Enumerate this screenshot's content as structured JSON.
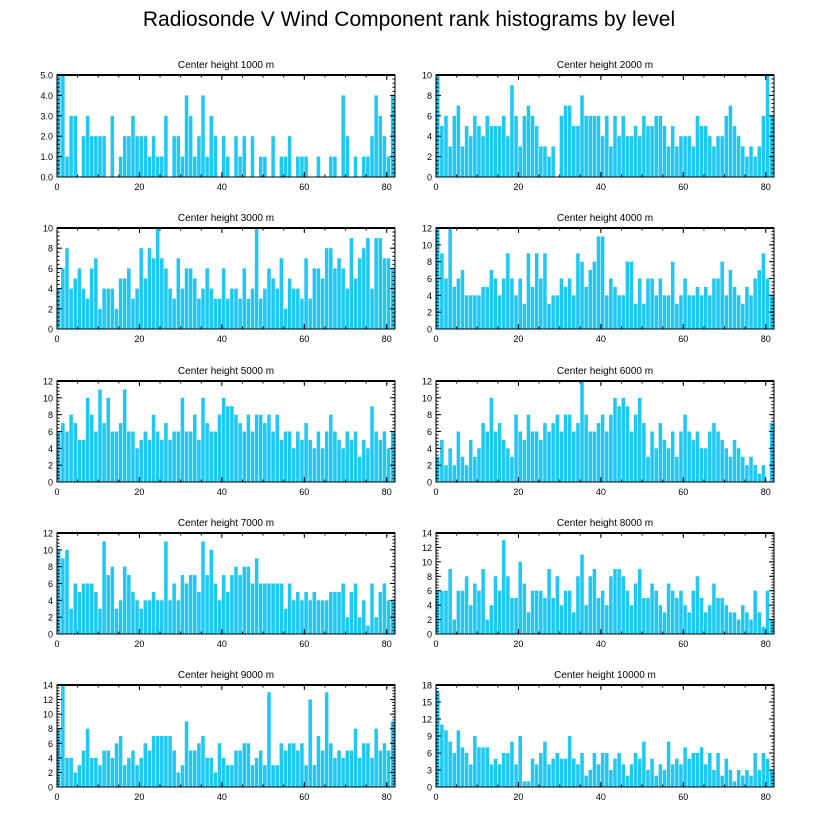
{
  "title": "Radiosonde V Wind Component rank histograms by level",
  "chart_data": [
    {
      "type": "bar",
      "title": "Center height 1000 m",
      "ylim": [
        0,
        5
      ],
      "yticks": [
        0,
        1,
        2,
        3,
        4,
        5
      ],
      "ytick_labels": [
        "0.0",
        "1.0",
        "2.0",
        "3.0",
        "4.0",
        "5.0"
      ],
      "xlim": [
        0,
        82
      ],
      "xticks": [
        0,
        20,
        40,
        60,
        80
      ],
      "values": [
        5,
        5,
        1,
        3,
        3,
        0,
        2,
        3,
        2,
        2,
        2,
        2,
        0,
        3,
        0,
        1,
        2,
        2,
        3,
        2,
        2,
        2,
        1,
        2,
        1,
        1,
        3,
        0,
        2,
        2,
        1,
        4,
        3,
        1,
        2,
        4,
        1,
        3,
        2,
        0,
        2,
        1,
        0,
        2,
        1,
        2,
        0,
        2,
        0,
        1,
        1,
        0,
        2,
        0,
        1,
        1,
        2,
        0,
        1,
        1,
        1,
        0,
        0,
        1,
        0,
        0,
        1,
        1,
        0,
        4,
        2,
        0,
        1,
        0,
        1,
        1,
        2,
        4,
        3,
        2,
        1,
        4
      ]
    },
    {
      "type": "bar",
      "title": "Center height 2000 m",
      "ylim": [
        0,
        10
      ],
      "yticks": [
        0,
        2,
        4,
        6,
        8,
        10
      ],
      "ytick_labels": [
        "0",
        "2",
        "4",
        "6",
        "8",
        "10"
      ],
      "xlim": [
        0,
        82
      ],
      "xticks": [
        0,
        20,
        40,
        60,
        80
      ],
      "values": [
        10,
        5,
        6,
        3,
        6,
        7,
        3,
        5,
        4,
        6,
        5,
        4,
        6,
        5,
        5,
        5,
        6,
        4,
        9,
        6,
        3,
        6,
        7,
        6,
        5,
        3,
        3,
        2,
        3,
        0,
        6,
        7,
        7,
        5,
        5,
        8,
        6,
        6,
        6,
        6,
        4,
        6,
        3,
        6,
        4,
        6,
        4,
        4,
        5,
        4,
        6,
        5,
        5,
        6,
        6,
        5,
        3,
        5,
        3,
        4,
        4,
        4,
        3,
        6,
        5,
        5,
        4,
        3,
        4,
        4,
        6,
        7,
        5,
        4,
        3,
        2,
        3,
        2,
        3,
        6,
        10,
        6
      ]
    },
    {
      "type": "bar",
      "title": "Center height 3000 m",
      "ylim": [
        0,
        10
      ],
      "yticks": [
        0,
        2,
        4,
        6,
        8,
        10
      ],
      "ytick_labels": [
        "0",
        "2",
        "4",
        "6",
        "8",
        "10"
      ],
      "xlim": [
        0,
        82
      ],
      "xticks": [
        0,
        20,
        40,
        60,
        80
      ],
      "values": [
        4,
        6,
        8,
        4,
        5,
        6,
        4,
        3,
        6,
        7,
        2,
        4,
        4,
        4,
        2,
        5,
        5,
        6,
        3,
        4,
        8,
        5,
        8,
        7,
        10,
        7,
        6,
        4,
        3,
        7,
        4,
        6,
        6,
        5,
        3,
        4,
        6,
        4,
        3,
        3,
        6,
        3,
        4,
        4,
        3,
        6,
        3,
        4,
        10,
        3,
        4,
        6,
        5,
        4,
        7,
        2,
        5,
        4,
        4,
        3,
        7,
        3,
        6,
        6,
        5,
        8,
        8,
        6,
        7,
        6,
        4,
        9,
        5,
        7,
        8,
        9,
        4,
        9,
        9,
        7,
        7,
        6
      ]
    },
    {
      "type": "bar",
      "title": "Center height 4000 m",
      "ylim": [
        0,
        12
      ],
      "yticks": [
        0,
        2,
        4,
        6,
        8,
        10,
        12
      ],
      "ytick_labels": [
        "0",
        "2",
        "4",
        "6",
        "8",
        "10",
        "12"
      ],
      "xlim": [
        0,
        82
      ],
      "xticks": [
        0,
        20,
        40,
        60,
        80
      ],
      "values": [
        12,
        9,
        6,
        12,
        5,
        6,
        7,
        4,
        4,
        4,
        4,
        5,
        5,
        7,
        6,
        4,
        6,
        9,
        6,
        4,
        6,
        3,
        9,
        5,
        9,
        6,
        9,
        3,
        4,
        4,
        6,
        5,
        6,
        4,
        9,
        8,
        5,
        7,
        8,
        11,
        11,
        4,
        6,
        5,
        4,
        4,
        8,
        8,
        3,
        6,
        3,
        6,
        6,
        4,
        6,
        4,
        4,
        8,
        3,
        4,
        6,
        4,
        4,
        5,
        4,
        5,
        4,
        6,
        6,
        8,
        4,
        7,
        5,
        4,
        3,
        5,
        4,
        6,
        7,
        9,
        6,
        4
      ]
    },
    {
      "type": "bar",
      "title": "Center height 5000 m",
      "ylim": [
        0,
        12
      ],
      "yticks": [
        0,
        2,
        4,
        6,
        8,
        10,
        12
      ],
      "ytick_labels": [
        "0",
        "2",
        "4",
        "6",
        "8",
        "10",
        "12"
      ],
      "xlim": [
        0,
        82
      ],
      "xticks": [
        0,
        20,
        40,
        60,
        80
      ],
      "values": [
        6,
        7,
        6,
        8,
        7,
        5,
        5,
        10,
        8,
        6,
        11,
        7,
        10,
        6,
        6,
        7,
        11,
        6,
        6,
        4,
        5,
        6,
        5,
        8,
        6,
        5,
        7,
        5,
        6,
        6,
        10,
        6,
        6,
        8,
        5,
        10,
        7,
        6,
        6,
        8,
        10,
        9,
        9,
        8,
        7,
        6,
        8,
        6,
        8,
        8,
        7,
        8,
        6,
        8,
        5,
        6,
        6,
        4,
        6,
        5,
        7,
        5,
        4,
        6,
        4,
        6,
        8,
        6,
        5,
        4,
        6,
        5,
        6,
        3,
        5,
        4,
        9,
        6,
        5,
        6,
        4,
        6
      ]
    },
    {
      "type": "bar",
      "title": "Center height 6000 m",
      "ylim": [
        0,
        12
      ],
      "yticks": [
        0,
        2,
        4,
        6,
        8,
        10,
        12
      ],
      "ytick_labels": [
        "0",
        "2",
        "4",
        "6",
        "8",
        "10",
        "12"
      ],
      "xlim": [
        0,
        82
      ],
      "xticks": [
        0,
        20,
        40,
        60,
        80
      ],
      "values": [
        3,
        5,
        2,
        4,
        2,
        6,
        3,
        2,
        5,
        3,
        4,
        7,
        6,
        10,
        6,
        7,
        5,
        4,
        3,
        8,
        6,
        5,
        8,
        6,
        6,
        5,
        7,
        6,
        7,
        8,
        6,
        8,
        8,
        6,
        7,
        12,
        8,
        6,
        6,
        7,
        8,
        6,
        8,
        10,
        9,
        10,
        9,
        6,
        8,
        10,
        7,
        3,
        6,
        4,
        7,
        5,
        4,
        6,
        3,
        6,
        8,
        6,
        5,
        6,
        4,
        4,
        6,
        7,
        6,
        5,
        4,
        3,
        5,
        4,
        3,
        2,
        3,
        2,
        1,
        2,
        0,
        7
      ]
    },
    {
      "type": "bar",
      "title": "Center height 7000 m",
      "ylim": [
        0,
        12
      ],
      "yticks": [
        0,
        2,
        4,
        6,
        8,
        10,
        12
      ],
      "ytick_labels": [
        "0",
        "2",
        "4",
        "6",
        "8",
        "10",
        "12"
      ],
      "xlim": [
        0,
        82
      ],
      "xticks": [
        0,
        20,
        40,
        60,
        80
      ],
      "values": [
        10,
        9,
        10,
        3,
        6,
        5,
        6,
        6,
        6,
        5,
        3,
        11,
        7,
        8,
        3,
        4,
        8,
        7,
        5,
        4,
        3,
        4,
        4,
        5,
        4,
        4,
        11,
        4,
        6,
        4,
        7,
        6,
        7,
        7,
        5,
        11,
        7,
        10,
        6,
        4,
        7,
        5,
        7,
        8,
        7,
        8,
        8,
        6,
        9,
        6,
        6,
        6,
        6,
        6,
        6,
        3,
        6,
        4,
        5,
        4,
        5,
        4,
        5,
        4,
        4,
        4,
        5,
        5,
        5,
        6,
        2,
        5,
        6,
        2,
        4,
        1,
        6,
        2,
        5,
        6,
        4,
        4
      ]
    },
    {
      "type": "bar",
      "title": "Center height 8000 m",
      "ylim": [
        0,
        14
      ],
      "yticks": [
        0,
        2,
        4,
        6,
        8,
        10,
        12,
        14
      ],
      "ytick_labels": [
        "0",
        "2",
        "4",
        "6",
        "8",
        "10",
        "12",
        "14"
      ],
      "xlim": [
        0,
        82
      ],
      "xticks": [
        0,
        20,
        40,
        60,
        80
      ],
      "values": [
        6,
        6,
        6,
        9,
        2,
        6,
        6,
        8,
        4,
        7,
        6,
        9,
        2,
        4,
        8,
        6,
        13,
        8,
        5,
        5,
        10,
        7,
        3,
        6,
        6,
        6,
        5,
        9,
        5,
        8,
        4,
        6,
        6,
        3,
        8,
        11,
        4,
        8,
        9,
        5,
        6,
        4,
        8,
        9,
        9,
        8,
        6,
        4,
        7,
        9,
        5,
        5,
        7,
        6,
        4,
        3,
        7,
        6,
        5,
        6,
        4,
        3,
        6,
        8,
        5,
        3,
        4,
        7,
        5,
        5,
        4,
        3,
        3,
        2,
        4,
        3,
        2,
        6,
        3,
        1,
        6,
        2
      ]
    },
    {
      "type": "bar",
      "title": "Center height 9000 m",
      "ylim": [
        0,
        14
      ],
      "yticks": [
        0,
        2,
        4,
        6,
        8,
        10,
        12,
        14
      ],
      "ytick_labels": [
        "0",
        "2",
        "4",
        "6",
        "8",
        "10",
        "12",
        "14"
      ],
      "xlim": [
        0,
        82
      ],
      "xticks": [
        0,
        20,
        40,
        60,
        80
      ],
      "values": [
        8,
        14,
        4,
        4,
        2,
        3,
        5,
        8,
        4,
        4,
        3,
        5,
        5,
        4,
        6,
        7,
        3,
        4,
        5,
        3,
        4,
        6,
        5,
        7,
        7,
        7,
        7,
        7,
        5,
        2,
        3,
        9,
        5,
        5,
        6,
        7,
        4,
        4,
        2,
        6,
        4,
        3,
        3,
        5,
        5,
        6,
        6,
        3,
        4,
        5,
        3,
        13,
        3,
        3,
        6,
        5,
        6,
        6,
        5,
        6,
        3,
        12,
        3,
        7,
        5,
        13,
        6,
        4,
        5,
        4,
        5,
        5,
        8,
        4,
        6,
        6,
        4,
        8,
        5,
        6,
        5,
        9
      ]
    },
    {
      "type": "bar",
      "title": "Center height 10000 m",
      "ylim": [
        0,
        18
      ],
      "yticks": [
        0,
        3,
        6,
        9,
        12,
        15,
        18
      ],
      "ytick_labels": [
        "0",
        "3",
        "6",
        "9",
        "12",
        "15",
        "18"
      ],
      "xlim": [
        0,
        82
      ],
      "xticks": [
        0,
        20,
        40,
        60,
        80
      ],
      "values": [
        17,
        11,
        10,
        8,
        6,
        10,
        7,
        6,
        4,
        9,
        7,
        7,
        7,
        4,
        5,
        4,
        6,
        6,
        8,
        4,
        9,
        1,
        1,
        5,
        4,
        6,
        8,
        4,
        5,
        6,
        5,
        5,
        9,
        5,
        4,
        6,
        2,
        3,
        6,
        4,
        6,
        6,
        3,
        5,
        6,
        4,
        2,
        4,
        6,
        5,
        8,
        3,
        5,
        2,
        4,
        3,
        8,
        4,
        5,
        4,
        7,
        5,
        6,
        6,
        7,
        4,
        6,
        3,
        6,
        2,
        5,
        3,
        1,
        3,
        2,
        3,
        2,
        6,
        3,
        6,
        5,
        3
      ]
    }
  ]
}
